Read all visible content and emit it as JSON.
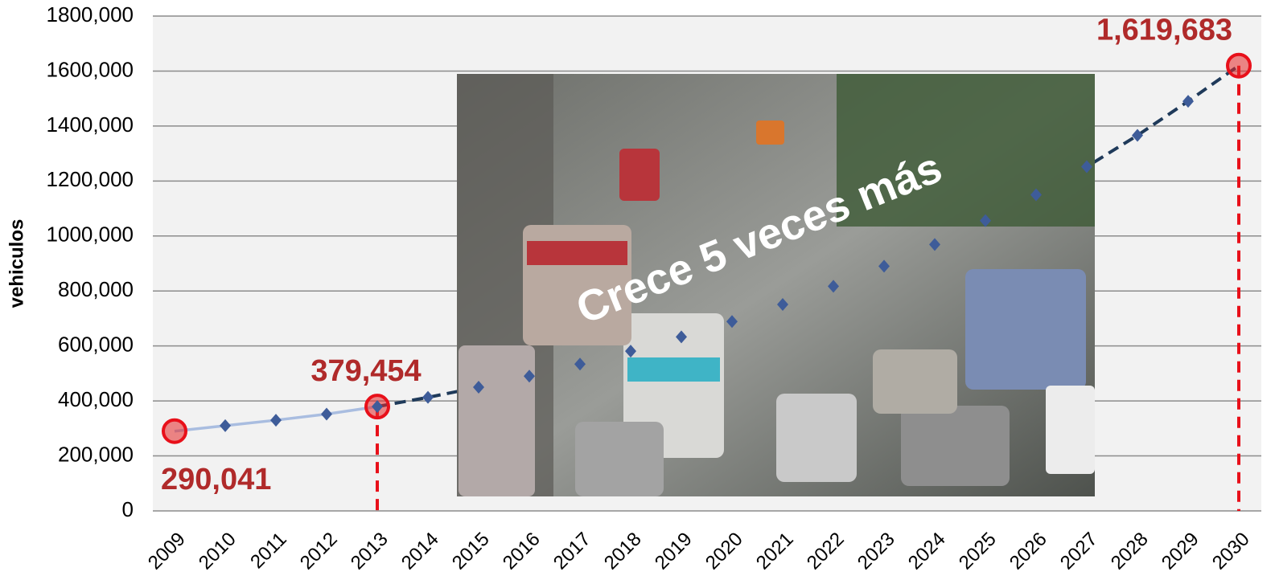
{
  "chart_data": {
    "type": "line",
    "y_label": "vehiculos",
    "annotation": "Crece 5 veces más",
    "categories": [
      "2009",
      "2010",
      "2011",
      "2012",
      "2013",
      "2014",
      "2015",
      "2016",
      "2017",
      "2018",
      "2019",
      "2020",
      "2021",
      "2022",
      "2023",
      "2024",
      "2025",
      "2026",
      "2027",
      "2028",
      "2029",
      "2030"
    ],
    "series": [
      {
        "color": "#a9bde0",
        "dash": false,
        "values": [
          290041,
          310000,
          330000,
          352000,
          379454,
          null,
          null,
          null,
          null,
          null,
          null,
          null,
          null,
          null,
          null,
          null,
          null,
          null,
          null,
          null,
          null,
          null
        ],
        "value_labels": [
          "290,041",
          null,
          null,
          null,
          "379,454",
          null,
          null,
          null,
          null,
          null,
          null,
          null,
          null,
          null,
          null,
          null,
          null,
          null,
          null,
          null,
          null,
          null
        ]
      },
      {
        "color": "#1f3a5a",
        "dash": true,
        "values": [
          null,
          null,
          null,
          null,
          379454,
          413000,
          450000,
          490000,
          534000,
          581000,
          633000,
          689000,
          751000,
          817000,
          890000,
          969000,
          1056000,
          1150000,
          1252000,
          1366000,
          1490000,
          1619683
        ],
        "value_labels": [
          null,
          null,
          null,
          null,
          null,
          null,
          null,
          null,
          null,
          null,
          null,
          null,
          null,
          null,
          null,
          null,
          null,
          null,
          null,
          null,
          null,
          "1,619,683"
        ]
      }
    ],
    "ylim": [
      0,
      1800000
    ],
    "yticks": [
      0,
      {
        "value": 200000,
        "label": "200,000"
      },
      {
        "value": 400000,
        "label": "400,000"
      },
      {
        "value": 600000,
        "label": "600,000"
      },
      {
        "value": 800000,
        "label": "800,000"
      },
      {
        "value": 1000000,
        "label": "1000,000"
      },
      {
        "value": 1200000,
        "label": "1200,000"
      },
      {
        "value": 1400000,
        "label": "1400,000"
      },
      {
        "value": 1600000,
        "label": "1600,000"
      },
      {
        "value": 1800000,
        "label": "1800,000"
      }
    ],
    "grid": true
  }
}
